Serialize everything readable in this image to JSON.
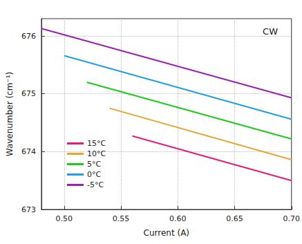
{
  "chart_data": {
    "type": "line",
    "annotation": "CW",
    "x_label": "Current (A)",
    "y_label": "Wavenumber (cm⁻¹)",
    "xlim": [
      0.48,
      0.7
    ],
    "xticks": [
      {
        "value": 0.5,
        "label": "0.50"
      },
      0.55,
      {
        "value": 0.6,
        "label": "0.60"
      },
      0.65,
      {
        "value": 0.7,
        "label": "0.70"
      }
    ],
    "ylim": [
      673,
      676.3
    ],
    "yticks": [
      673,
      674,
      675,
      676
    ],
    "grid": true,
    "legend": "lower left",
    "series": [
      {
        "name": "15°C",
        "color": "#e8197b",
        "x": [
          0.56,
          0.7
        ],
        "values": [
          674.27,
          673.5
        ]
      },
      {
        "name": "10°C",
        "color": "#e8a530",
        "x": [
          0.54,
          0.7
        ],
        "values": [
          674.75,
          673.86
        ]
      },
      {
        "name": "5°C",
        "color": "#19cc19",
        "x": [
          0.52,
          0.7
        ],
        "values": [
          675.2,
          674.22
        ]
      },
      {
        "name": "0°C",
        "color": "#1e9fe6",
        "x": [
          0.5,
          0.7
        ],
        "values": [
          675.66,
          674.56
        ]
      },
      {
        "name": "-5°C",
        "color": "#9b1fb5",
        "x": [
          0.48,
          0.7
        ],
        "values": [
          676.13,
          674.93
        ]
      }
    ]
  }
}
